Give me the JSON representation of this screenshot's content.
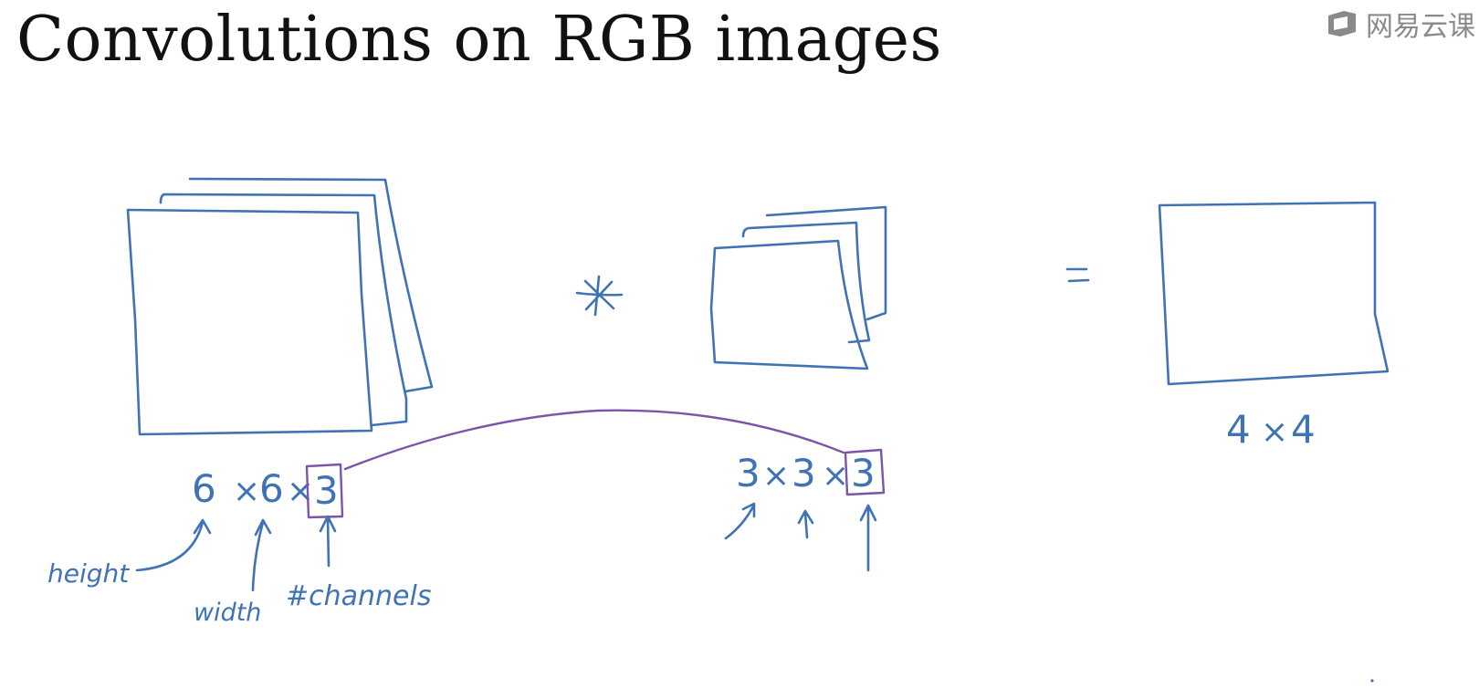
{
  "title": "Convolutions on RGB images",
  "watermark": {
    "text": "网易云课",
    "icon": "netease-cloud-classroom-logo"
  },
  "colors": {
    "pen_blue": "#3f73b5",
    "pen_purple": "#7a55a8",
    "title": "#111111",
    "watermark": "#8a8a8a"
  },
  "operators": {
    "convolve": "*",
    "equals": "="
  },
  "input": {
    "height": "6",
    "width": "6",
    "channels": "3",
    "times": "×"
  },
  "filter": {
    "height": "3",
    "width": "3",
    "channels": "3",
    "times": "×"
  },
  "output": {
    "height": "4",
    "width": "4",
    "times": "×"
  },
  "annotations": {
    "height": "height",
    "width": "width",
    "channels": "#channels"
  }
}
